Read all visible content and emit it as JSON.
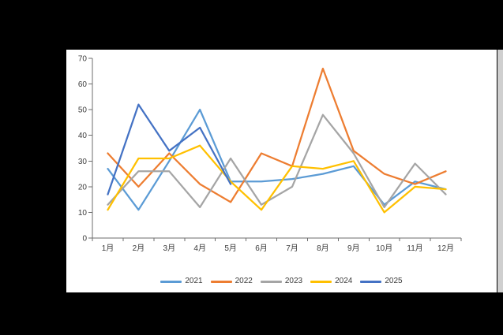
{
  "chart_data": {
    "type": "line",
    "title": "",
    "xlabel": "",
    "ylabel": "",
    "categories": [
      "1月",
      "2月",
      "3月",
      "4月",
      "5月",
      "6月",
      "7月",
      "8月",
      "9月",
      "10月",
      "11月",
      "12月"
    ],
    "series": [
      {
        "name": "2021",
        "color": "#5B9BD5",
        "values": [
          27,
          11,
          30,
          50,
          22,
          22,
          23,
          25,
          28,
          13,
          22,
          19
        ]
      },
      {
        "name": "2022",
        "color": "#ED7D31",
        "values": [
          33,
          20,
          33,
          21,
          14,
          33,
          28,
          66,
          34,
          25,
          21,
          26
        ]
      },
      {
        "name": "2023",
        "color": "#A5A5A5",
        "values": [
          13,
          26,
          26,
          12,
          31,
          13,
          20,
          48,
          33,
          12,
          29,
          17
        ]
      },
      {
        "name": "2024",
        "color": "#FFC000",
        "values": [
          11,
          31,
          31,
          36,
          22,
          11,
          28,
          27,
          30,
          10,
          20,
          19
        ]
      },
      {
        "name": "2025",
        "color": "#4472C4",
        "values": [
          17,
          52,
          34,
          43,
          21,
          null,
          null,
          null,
          null,
          null,
          null,
          null
        ]
      }
    ],
    "ylim": [
      0,
      70
    ],
    "ytick_step": 10,
    "yticks": [
      "0",
      "10",
      "20",
      "30",
      "40",
      "50",
      "60",
      "70"
    ],
    "grid": false,
    "legend_position": "bottom"
  },
  "style": {
    "background": "#000000",
    "panel_background": "#ffffff",
    "axis_line_color": "#6e6e6e",
    "axis_text_color": "#3b3b3b",
    "right_strip_color": "#cfcfcf"
  }
}
